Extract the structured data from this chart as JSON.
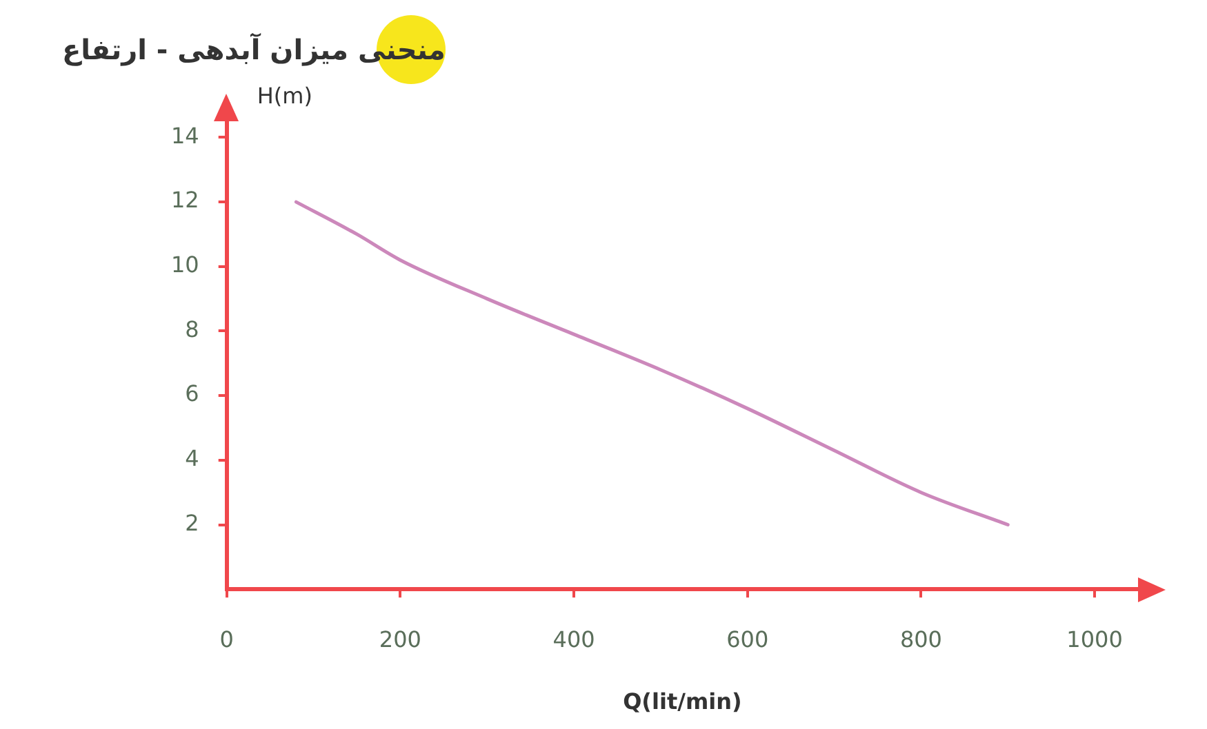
{
  "chart_data": {
    "type": "line",
    "title": "منحنی میزان آبدهی - ارتفاع",
    "xlabel": "Q(lit/min)",
    "ylabel": "H(m)",
    "x": [
      80,
      150,
      200,
      300,
      400,
      500,
      600,
      700,
      800,
      900
    ],
    "series": [
      {
        "color": "#cc88bb",
        "values": [
          12,
          11,
          10.2,
          9.0,
          7.9,
          6.8,
          5.6,
          4.3,
          3.0,
          2.0
        ]
      }
    ],
    "xlim": [
      0,
      1050
    ],
    "xticks": [
      0,
      200,
      400,
      600,
      800,
      1000
    ],
    "ylim": [
      0,
      14.5
    ],
    "yticks": [
      2,
      4,
      6,
      8,
      10,
      12,
      14
    ],
    "marker": "none",
    "line_style": "solid",
    "legend": false
  }
}
